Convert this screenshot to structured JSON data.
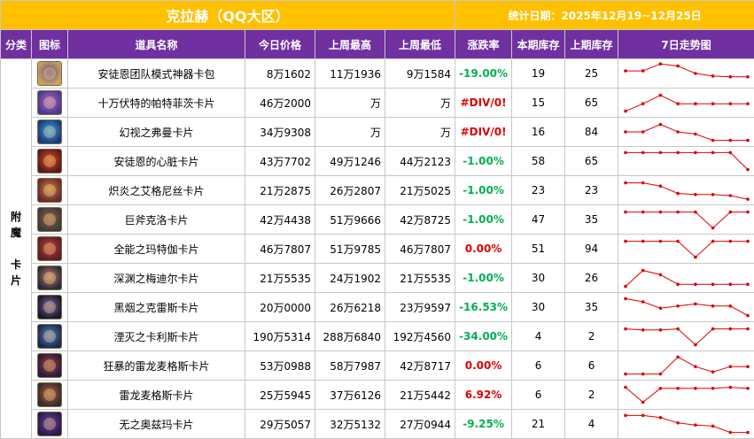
{
  "header": {
    "title": "克拉赫（QQ大区）",
    "stat_date": "统计日期：2025年12月19~12月25日"
  },
  "columns": {
    "category": "分类",
    "icon": "图标",
    "name": "道具名称",
    "today_price": "今日价格",
    "last_week_high": "上周最高",
    "last_week_low": "上周最低",
    "change": "涨跌率",
    "this_stock": "本期库存",
    "last_stock": "上期库存",
    "trend": "7日走势图"
  },
  "category_label": "附\n魔\n\n卡\n片",
  "colors": {
    "title_bg": "#FFC000",
    "header_bg": "#7030A0",
    "positive": "#E00000",
    "negative": "#00B050",
    "trend_line": "#E00000"
  },
  "rows": [
    {
      "name": "安徒恩团队模式神器卡包",
      "icon": "gold-card-pack-icon",
      "icon_colors": [
        "#c9a45a",
        "#6a4a8a"
      ],
      "today_price": "8万1602",
      "high": "11万1936",
      "low": "9万1584",
      "change": "-19.00%",
      "change_color": "#00B050",
      "stock": "19",
      "last_stock": "25",
      "trend": [
        62,
        62,
        95,
        85,
        50,
        38,
        34,
        34
      ]
    },
    {
      "name": "十万伏特的帕特菲茨卡片",
      "icon": "purple-orb-card-icon",
      "icon_colors": [
        "#4a3a8a",
        "#b060d0"
      ],
      "today_price": "46万2000",
      "high": "万",
      "low": "万",
      "change": "#DIV/0!",
      "change_color": "#E00000",
      "stock": "15",
      "last_stock": "65",
      "trend": [
        10,
        45,
        85,
        45,
        45,
        45,
        45,
        45
      ]
    },
    {
      "name": "幻视之弗曼卡片",
      "icon": "blue-eye-card-icon",
      "icon_colors": [
        "#1a3a7a",
        "#40a0e0"
      ],
      "today_price": "34万9308",
      "high": "万",
      "low": "万",
      "change": "#DIV/0!",
      "change_color": "#E00000",
      "stock": "16",
      "last_stock": "84",
      "trend": [
        50,
        50,
        85,
        50,
        40,
        10,
        10,
        10
      ]
    },
    {
      "name": "安徒恩的心脏卡片",
      "icon": "fire-heart-card-icon",
      "icon_colors": [
        "#5a1a1a",
        "#e05020"
      ],
      "today_price": "43万7702",
      "high": "49万1246",
      "low": "44万2123",
      "change": "-1.00%",
      "change_color": "#00B050",
      "stock": "58",
      "last_stock": "65",
      "trend": [
        90,
        90,
        90,
        90,
        90,
        90,
        90,
        10
      ]
    },
    {
      "name": "炽炎之艾格尼丝卡片",
      "icon": "flame-lady-card-icon",
      "icon_colors": [
        "#6a2a2a",
        "#d08040"
      ],
      "today_price": "21万2875",
      "high": "26万2807",
      "low": "21万5025",
      "change": "-1.00%",
      "change_color": "#00B050",
      "stock": "23",
      "last_stock": "23",
      "trend": [
        85,
        85,
        70,
        35,
        30,
        30,
        25,
        8
      ]
    },
    {
      "name": "巨斧克洛卡片",
      "icon": "axe-warrior-card-icon",
      "icon_colors": [
        "#3a3a3a",
        "#a06040"
      ],
      "today_price": "42万4438",
      "high": "51万9666",
      "low": "42万8725",
      "change": "-1.00%",
      "change_color": "#00B050",
      "stock": "47",
      "last_stock": "35",
      "trend": [
        85,
        85,
        85,
        85,
        85,
        10,
        85,
        85
      ]
    },
    {
      "name": "全能之玛特伽卡片",
      "icon": "red-mage-card-icon",
      "icon_colors": [
        "#5a2020",
        "#c04040"
      ],
      "today_price": "46万7807",
      "high": "51万9785",
      "low": "46万7807",
      "change": "0.00%",
      "change_color": "#E00000",
      "stock": "51",
      "last_stock": "94",
      "trend": [
        85,
        85,
        85,
        85,
        10,
        85,
        85,
        85
      ]
    },
    {
      "name": "深渊之梅迪尔卡片",
      "icon": "abyss-mage-card-icon",
      "icon_colors": [
        "#2a2a3a",
        "#c08060"
      ],
      "today_price": "21万5535",
      "high": "24万1902",
      "low": "21万5535",
      "change": "-1.00%",
      "change_color": "#00B050",
      "stock": "30",
      "last_stock": "26",
      "trend": [
        10,
        85,
        65,
        20,
        20,
        20,
        20,
        20
      ]
    },
    {
      "name": "黑烟之克雷斯卡片",
      "icon": "dark-smoke-card-icon",
      "icon_colors": [
        "#1a1a2a",
        "#8060a0"
      ],
      "today_price": "20万0000",
      "high": "26万6218",
      "low": "23万9597",
      "change": "-16.53%",
      "change_color": "#00B050",
      "stock": "30",
      "last_stock": "35",
      "trend": [
        90,
        75,
        45,
        55,
        65,
        55,
        55,
        10
      ]
    },
    {
      "name": "湮灭之卡利斯卡片",
      "icon": "void-blade-card-icon",
      "icon_colors": [
        "#1a2a4a",
        "#6080c0"
      ],
      "today_price": "190万5314",
      "high": "288万6840",
      "low": "192万4560",
      "change": "-34.00%",
      "change_color": "#00B050",
      "stock": "4",
      "last_stock": "2",
      "trend": [
        85,
        80,
        80,
        85,
        10,
        85,
        85,
        85
      ]
    },
    {
      "name": "狂暴的雷龙麦格斯卡片",
      "icon": "rage-dragon-card-icon",
      "icon_colors": [
        "#2a1a3a",
        "#a04040"
      ],
      "today_price": "53万0988",
      "high": "58万7987",
      "low": "42万8717",
      "change": "0.00%",
      "change_color": "#E00000",
      "stock": "6",
      "last_stock": "6",
      "trend": [
        10,
        10,
        10,
        90,
        45,
        20,
        45,
        45
      ]
    },
    {
      "name": "雷龙麦格斯卡片",
      "icon": "thunder-dragon-card-icon",
      "icon_colors": [
        "#3a2a2a",
        "#b06040"
      ],
      "today_price": "25万5945",
      "high": "37万6126",
      "low": "21万5442",
      "change": "6.92%",
      "change_color": "#E00000",
      "stock": "6",
      "last_stock": "2",
      "trend": [
        85,
        15,
        80,
        80,
        80,
        80,
        85,
        80
      ]
    },
    {
      "name": "无之奥兹玛卡片",
      "icon": "void-ozma-card-icon",
      "icon_colors": [
        "#2a1a4a",
        "#7040a0"
      ],
      "today_price": "29万5057",
      "high": "32万5132",
      "low": "27万0944",
      "change": "-9.25%",
      "change_color": "#00B050",
      "stock": "21",
      "last_stock": "4",
      "trend": [
        90,
        90,
        80,
        55,
        45,
        40,
        10,
        10
      ]
    }
  ]
}
